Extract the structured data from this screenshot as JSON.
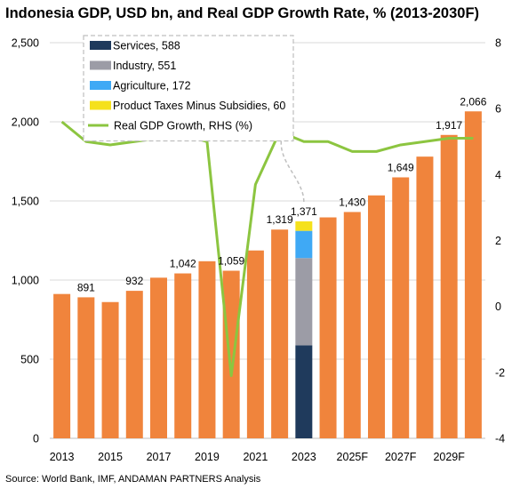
{
  "chart_data": {
    "type": "bar",
    "title": "Indonesia GDP, USD bn, and Real GDP Growth Rate, % (2013-2030F)",
    "source": "Source: World Bank, IMF, ANDAMAN PARTNERS Analysis",
    "categories": [
      "2013",
      "2014",
      "2015",
      "2016",
      "2017",
      "2018",
      "2019",
      "2020",
      "2021",
      "2022",
      "2023",
      "2024F",
      "2025F",
      "2026F",
      "2027F",
      "2028F",
      "2029F",
      "2030F"
    ],
    "x_tick_labels": [
      "2013",
      "2015",
      "2017",
      "2019",
      "2021",
      "2023",
      "2025F",
      "2027F",
      "2029F"
    ],
    "gdp_values": [
      912,
      891,
      861,
      932,
      1015,
      1042,
      1119,
      1059,
      1187,
      1319,
      1371,
      1396,
      1430,
      1535,
      1649,
      1780,
      1917,
      2066
    ],
    "gdp_data_labels": [
      {
        "category": "2014",
        "label": "891"
      },
      {
        "category": "2016",
        "label": "932"
      },
      {
        "category": "2018",
        "label": "1,042"
      },
      {
        "category": "2020",
        "label": "1,059"
      },
      {
        "category": "2022",
        "label": "1,319"
      },
      {
        "category": "2023",
        "label": "1,371"
      },
      {
        "category": "2025F",
        "label": "1,430"
      },
      {
        "category": "2027F",
        "label": "1,649"
      },
      {
        "category": "2029F",
        "label": "1,917"
      },
      {
        "category": "2030F",
        "label": "2,066"
      }
    ],
    "breakdown_2023": [
      {
        "name": "Services",
        "value": 588,
        "color": "#1f3a5c"
      },
      {
        "name": "Industry",
        "value": 551,
        "color": "#9c9ca6"
      },
      {
        "name": "Agriculture",
        "value": 172,
        "color": "#3fa9f5"
      },
      {
        "name": "Product Taxes Minus Subsidies",
        "value": 60,
        "color": "#f5e11c"
      }
    ],
    "growth_series": {
      "name": "Real GDP Growth, RHS (%)",
      "color": "#8cc540",
      "values": [
        5.6,
        5.0,
        4.9,
        5.0,
        5.1,
        5.2,
        5.0,
        -2.1,
        3.7,
        5.3,
        5.0,
        5.0,
        4.7,
        4.7,
        4.9,
        5.0,
        5.1,
        5.1
      ]
    },
    "bar_color": "#f0843c",
    "y_left": {
      "min": 0,
      "max": 2500,
      "ticks": [
        "0",
        "500",
        "1,000",
        "1,500",
        "2,000",
        "2,500"
      ]
    },
    "y_right": {
      "min": -4,
      "max": 8,
      "ticks": [
        "-4",
        "-2",
        "0",
        "2",
        "4",
        "6",
        "8"
      ]
    },
    "legend": {
      "placement": "top-center",
      "items": [
        {
          "label": "Services, 588",
          "color": "#1f3a5c",
          "kind": "box"
        },
        {
          "label": "Industry, 551",
          "color": "#9c9ca6",
          "kind": "box"
        },
        {
          "label": "Agriculture, 172",
          "color": "#3fa9f5",
          "kind": "box"
        },
        {
          "label": "Product Taxes Minus Subsidies, 60",
          "color": "#f5e11c",
          "kind": "box"
        },
        {
          "label": "Real GDP Growth, RHS (%)",
          "color": "#8cc540",
          "kind": "line"
        }
      ]
    },
    "grid": true,
    "gridline_color": "#d9d9d9"
  }
}
